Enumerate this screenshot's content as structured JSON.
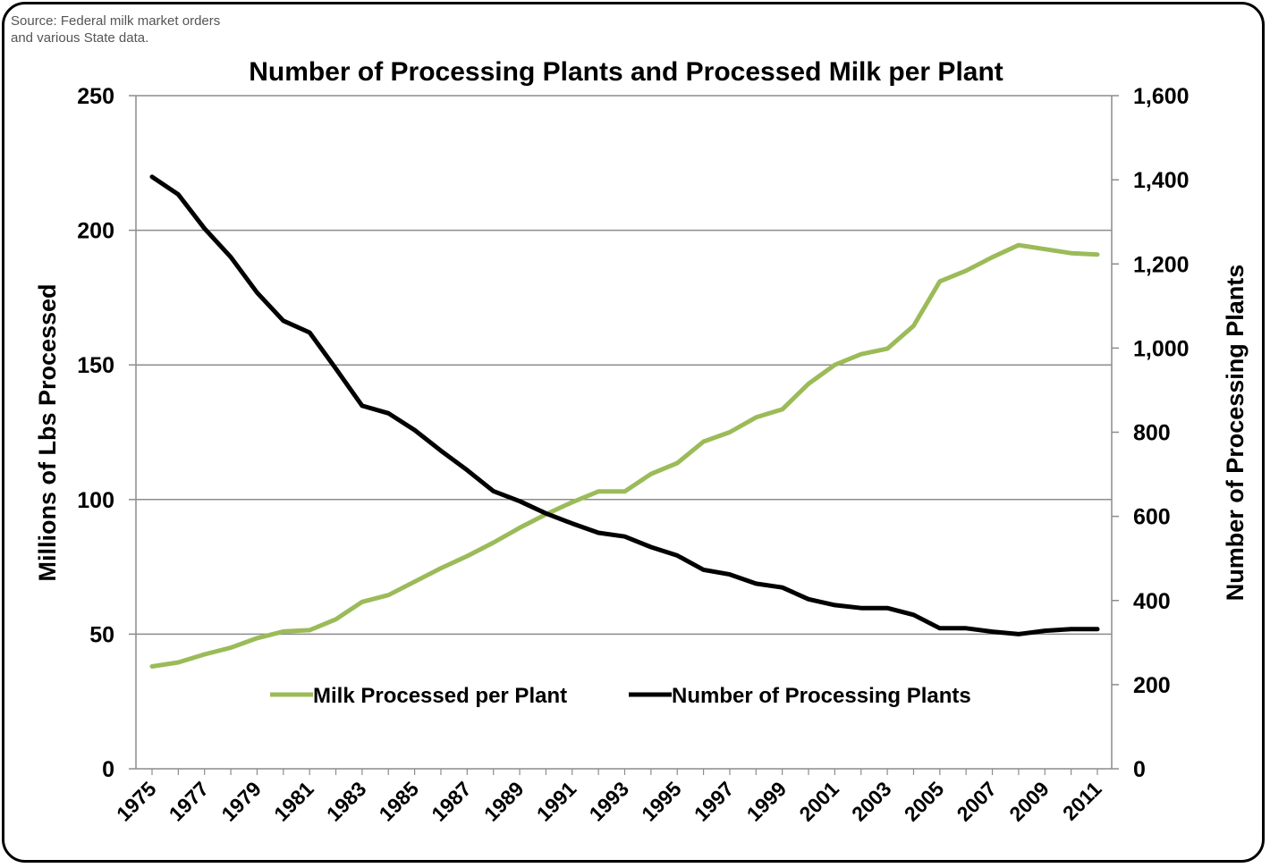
{
  "source_note": "Source: Federal milk market orders and various State data.",
  "chart_data": {
    "type": "line",
    "title": "Number of Processing Plants and Processed Milk per Plant",
    "x": [
      1975,
      1976,
      1977,
      1978,
      1979,
      1980,
      1981,
      1982,
      1983,
      1984,
      1985,
      1986,
      1987,
      1988,
      1989,
      1990,
      1991,
      1992,
      1993,
      1994,
      1995,
      1996,
      1997,
      1998,
      1999,
      2000,
      2001,
      2002,
      2003,
      2004,
      2005,
      2006,
      2007,
      2008,
      2009,
      2010,
      2011
    ],
    "x_tick_labels": [
      "1975",
      "1977",
      "1979",
      "1981",
      "1983",
      "1985",
      "1987",
      "1989",
      "1991",
      "1993",
      "1995",
      "1997",
      "1999",
      "2001",
      "2003",
      "2005",
      "2007",
      "2009",
      "2011"
    ],
    "ylabel_left": "Millions of Lbs Processed",
    "ylabel_right": "Number of Processing Plants",
    "ylim_left": [
      0,
      250
    ],
    "ylim_right": [
      0,
      1600
    ],
    "y_left_ticks": [
      "0",
      "50",
      "100",
      "150",
      "200",
      "250"
    ],
    "y_right_ticks": [
      "0",
      "200",
      "400",
      "600",
      "800",
      "1,000",
      "1,200",
      "1,400",
      "1,600"
    ],
    "grid": true,
    "legend_position": "bottom-center",
    "series": [
      {
        "name": "Milk Processed per Plant",
        "axis": "left",
        "color": "#9BBB59",
        "values": [
          38,
          39.5,
          42.5,
          45,
          48.5,
          51,
          51.5,
          55.5,
          62,
          64.5,
          69.5,
          74.5,
          79,
          84,
          89.5,
          94.5,
          99,
          103,
          103,
          109.5,
          113.5,
          121.5,
          125,
          130.5,
          133.5,
          143,
          150,
          154,
          156,
          164.5,
          181,
          185,
          190,
          194.5,
          193,
          191.5,
          191
        ]
      },
      {
        "name": "Number of Processing Plants",
        "axis": "right",
        "color": "#000000",
        "values": [
          1407,
          1365,
          1284,
          1216,
          1132,
          1065,
          1037,
          951,
          863,
          845,
          805,
          756,
          710,
          660,
          636,
          607,
          583,
          561,
          552,
          527,
          507,
          473,
          462,
          440,
          431,
          403,
          389,
          382,
          382,
          366,
          334,
          334,
          326,
          320,
          328,
          332,
          332
        ]
      }
    ]
  }
}
